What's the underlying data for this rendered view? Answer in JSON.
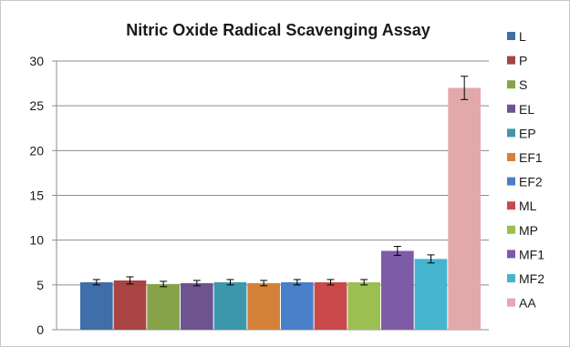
{
  "chart_data": {
    "type": "bar",
    "title": "Nitric Oxide Radical Scavenging Assay",
    "xlabel": "",
    "ylabel": "",
    "ylim": [
      0,
      30
    ],
    "yticks": [
      0,
      5,
      10,
      15,
      20,
      25,
      30
    ],
    "grid": "horizontal",
    "legend_position": "right",
    "categories": [
      "L",
      "P",
      "S",
      "EL",
      "EP",
      "EF1",
      "EF2",
      "ML",
      "MP",
      "MF1",
      "MF2",
      "AA"
    ],
    "series": [
      {
        "name": "L",
        "value": 5.3,
        "error": 0.3,
        "color": "#3f6ea8"
      },
      {
        "name": "P",
        "value": 5.5,
        "error": 0.4,
        "color": "#a84442"
      },
      {
        "name": "S",
        "value": 5.1,
        "error": 0.3,
        "color": "#86a34a"
      },
      {
        "name": "EL",
        "value": 5.2,
        "error": 0.3,
        "color": "#6e548f"
      },
      {
        "name": "EP",
        "value": 5.3,
        "error": 0.3,
        "color": "#3d97ac"
      },
      {
        "name": "EF1",
        "value": 5.2,
        "error": 0.3,
        "color": "#d4823a"
      },
      {
        "name": "EF2",
        "value": 5.3,
        "error": 0.3,
        "color": "#4a7fc9"
      },
      {
        "name": "ML",
        "value": 5.3,
        "error": 0.3,
        "color": "#c9494a"
      },
      {
        "name": "MP",
        "value": 5.3,
        "error": 0.3,
        "color": "#9cbf52"
      },
      {
        "name": "MF1",
        "value": 8.8,
        "error": 0.5,
        "color": "#7e5ba6"
      },
      {
        "name": "MF2",
        "value": 7.9,
        "error": 0.45,
        "color": "#45b5cf"
      },
      {
        "name": "AA",
        "value": 27.0,
        "error": 1.3,
        "color": "#e2a9ab"
      }
    ]
  }
}
